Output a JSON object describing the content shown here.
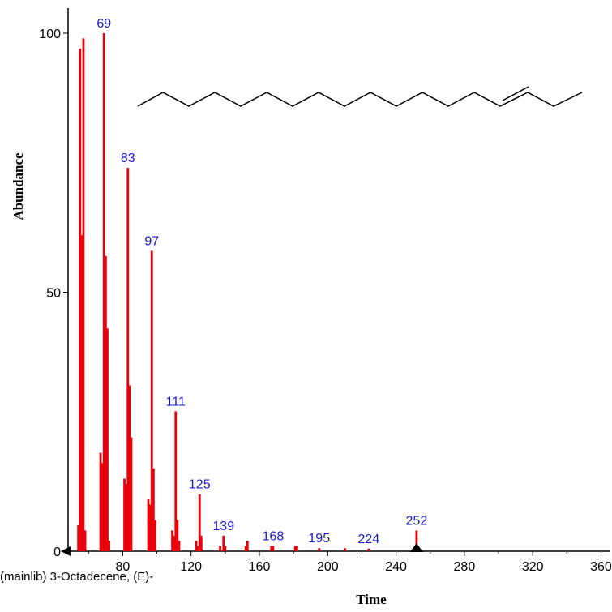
{
  "chart_data": {
    "type": "bar",
    "xlabel": "Time",
    "ylabel": "Abundance",
    "xlim": [
      48,
      365
    ],
    "ylim": [
      0,
      100
    ],
    "x_ticks": [
      80,
      120,
      160,
      200,
      240,
      280,
      320,
      360
    ],
    "y_ticks": [
      0,
      50,
      100
    ],
    "caption": "(mainlib) 3-Octadecene, (E)-",
    "colors": {
      "bars": "#e8000b",
      "peak_labels": "#1a1acc",
      "axis": "#000000",
      "structure": "#000000"
    },
    "precursor_marker_x": 252,
    "peaks": [
      {
        "x": 54,
        "y": 5
      },
      {
        "x": 55,
        "y": 97
      },
      {
        "x": 56,
        "y": 61
      },
      {
        "x": 57,
        "y": 99
      },
      {
        "x": 58,
        "y": 4
      },
      {
        "x": 67,
        "y": 19
      },
      {
        "x": 68,
        "y": 17
      },
      {
        "x": 69,
        "y": 100
      },
      {
        "x": 70,
        "y": 57
      },
      {
        "x": 71,
        "y": 43
      },
      {
        "x": 72,
        "y": 2
      },
      {
        "x": 81,
        "y": 14
      },
      {
        "x": 82,
        "y": 13
      },
      {
        "x": 83,
        "y": 74
      },
      {
        "x": 84,
        "y": 32
      },
      {
        "x": 85,
        "y": 22
      },
      {
        "x": 95,
        "y": 10
      },
      {
        "x": 96,
        "y": 9
      },
      {
        "x": 97,
        "y": 58
      },
      {
        "x": 98,
        "y": 16
      },
      {
        "x": 99,
        "y": 6
      },
      {
        "x": 109,
        "y": 4
      },
      {
        "x": 110,
        "y": 3
      },
      {
        "x": 111,
        "y": 27
      },
      {
        "x": 112,
        "y": 6
      },
      {
        "x": 113,
        "y": 2
      },
      {
        "x": 123,
        "y": 2
      },
      {
        "x": 124,
        "y": 1
      },
      {
        "x": 125,
        "y": 11
      },
      {
        "x": 126,
        "y": 3
      },
      {
        "x": 137,
        "y": 1
      },
      {
        "x": 139,
        "y": 3
      },
      {
        "x": 140,
        "y": 1
      },
      {
        "x": 152,
        "y": 1
      },
      {
        "x": 153,
        "y": 2
      },
      {
        "x": 167,
        "y": 1
      },
      {
        "x": 168,
        "y": 1
      },
      {
        "x": 181,
        "y": 1
      },
      {
        "x": 182,
        "y": 1
      },
      {
        "x": 195,
        "y": 0.6
      },
      {
        "x": 210,
        "y": 0.6
      },
      {
        "x": 224,
        "y": 0.5
      },
      {
        "x": 252,
        "y": 4
      }
    ],
    "peak_labels": [
      {
        "x": 69,
        "y": 100,
        "text": "69"
      },
      {
        "x": 83,
        "y": 74,
        "text": "83"
      },
      {
        "x": 97,
        "y": 58,
        "text": "97"
      },
      {
        "x": 111,
        "y": 27,
        "text": "111"
      },
      {
        "x": 125,
        "y": 11,
        "text": "125"
      },
      {
        "x": 139,
        "y": 3,
        "text": "139"
      },
      {
        "x": 168,
        "y": 1,
        "text": "168"
      },
      {
        "x": 195,
        "y": 0.6,
        "text": "195"
      },
      {
        "x": 224,
        "y": 0.5,
        "text": "224"
      },
      {
        "x": 252,
        "y": 4,
        "text": "252"
      }
    ]
  }
}
